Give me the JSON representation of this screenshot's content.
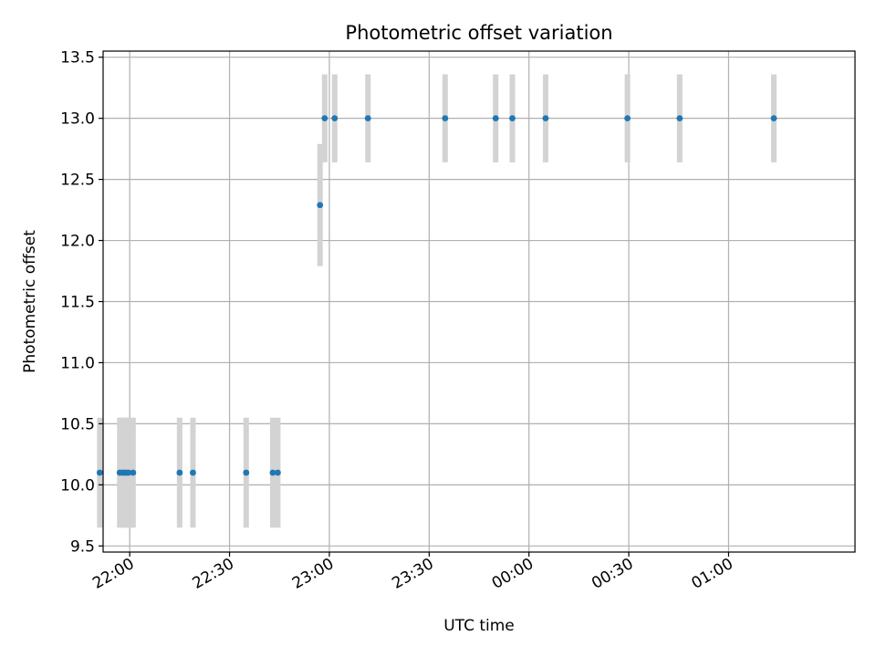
{
  "chart_data": {
    "type": "scatter",
    "title": "Photometric offset variation",
    "xlabel": "UTC time",
    "ylabel": "Photometric offset",
    "x_unit": "UTC time (HH:MM)",
    "xlim": [
      "21:52",
      "01:38"
    ],
    "ylim": [
      9.45,
      13.55
    ],
    "x_ticks": [
      "22:00",
      "22:30",
      "23:00",
      "23:30",
      "00:00",
      "00:30",
      "01:00"
    ],
    "y_ticks": [
      9.5,
      10.0,
      10.5,
      11.0,
      11.5,
      12.0,
      12.5,
      13.0,
      13.5
    ],
    "grid": true,
    "point_color": "#1f77b4",
    "errorbar_color": "#d3d3d3",
    "points": [
      {
        "time": "21:51:00",
        "y": 10.1,
        "err": 0.45
      },
      {
        "time": "21:57:00",
        "y": 10.1,
        "err": 0.45
      },
      {
        "time": "21:57:48",
        "y": 10.1,
        "err": 0.45
      },
      {
        "time": "21:58:24",
        "y": 10.1,
        "err": 0.45
      },
      {
        "time": "21:59:00",
        "y": 10.1,
        "err": 0.45
      },
      {
        "time": "21:59:36",
        "y": 10.1,
        "err": 0.45
      },
      {
        "time": "22:01:00",
        "y": 10.1,
        "err": 0.45
      },
      {
        "time": "22:15:00",
        "y": 10.1,
        "err": 0.45
      },
      {
        "time": "22:19:00",
        "y": 10.1,
        "err": 0.45
      },
      {
        "time": "22:35:00",
        "y": 10.1,
        "err": 0.45
      },
      {
        "time": "22:43:00",
        "y": 10.1,
        "err": 0.45
      },
      {
        "time": "22:44:30",
        "y": 10.1,
        "err": 0.45
      },
      {
        "time": "22:57:12",
        "y": 12.29,
        "err": 0.5
      },
      {
        "time": "22:58:36",
        "y": 13.0,
        "err": 0.36
      },
      {
        "time": "23:01:36",
        "y": 13.0,
        "err": 0.36
      },
      {
        "time": "23:11:36",
        "y": 13.0,
        "err": 0.36
      },
      {
        "time": "23:34:48",
        "y": 13.0,
        "err": 0.36
      },
      {
        "time": "23:50:00",
        "y": 13.0,
        "err": 0.36
      },
      {
        "time": "23:55:00",
        "y": 13.0,
        "err": 0.36
      },
      {
        "time": "00:05:00",
        "y": 13.0,
        "err": 0.36
      },
      {
        "time": "00:29:36",
        "y": 13.0,
        "err": 0.36
      },
      {
        "time": "00:45:18",
        "y": 13.0,
        "err": 0.36
      },
      {
        "time": "01:13:36",
        "y": 13.0,
        "err": 0.36
      }
    ]
  }
}
